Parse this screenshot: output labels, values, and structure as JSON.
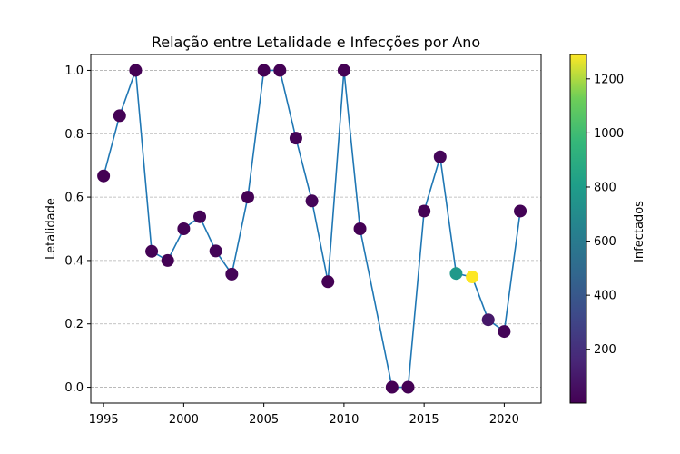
{
  "chart_data": {
    "type": "scatter",
    "title": "Relação entre Letalidade e Infecções por Ano",
    "xlabel": "",
    "ylabel": "Letalidade",
    "xlim": [
      1994.2,
      2022.3
    ],
    "ylim": [
      -0.05,
      1.05
    ],
    "x_ticks": [
      1995,
      2000,
      2005,
      2010,
      2015,
      2020
    ],
    "y_ticks": [
      0.0,
      0.2,
      0.4,
      0.6,
      0.8,
      1.0
    ],
    "y_tick_labels": [
      "0.0",
      "0.2",
      "0.4",
      "0.6",
      "0.8",
      "1.0"
    ],
    "grid": "y-dashed",
    "line_color": "#1f77b4",
    "colormap": "viridis",
    "colorbar": {
      "label": "Infectados",
      "range": [
        1,
        1290
      ],
      "ticks": [
        200,
        400,
        600,
        800,
        1000,
        1200
      ]
    },
    "points": [
      {
        "x": 1995,
        "y": 0.667,
        "infected": 3
      },
      {
        "x": 1996,
        "y": 0.857,
        "infected": 7
      },
      {
        "x": 1997,
        "y": 1.0,
        "infected": 1
      },
      {
        "x": 1998,
        "y": 0.429,
        "infected": 7
      },
      {
        "x": 1999,
        "y": 0.4,
        "infected": 5
      },
      {
        "x": 2000,
        "y": 0.5,
        "infected": 10
      },
      {
        "x": 2001,
        "y": 0.538,
        "infected": 13
      },
      {
        "x": 2002,
        "y": 0.43,
        "infected": 14
      },
      {
        "x": 2003,
        "y": 0.357,
        "infected": 14
      },
      {
        "x": 2004,
        "y": 0.6,
        "infected": 5
      },
      {
        "x": 2005,
        "y": 1.0,
        "infected": 2
      },
      {
        "x": 2006,
        "y": 1.0,
        "infected": 1
      },
      {
        "x": 2007,
        "y": 0.786,
        "infected": 14
      },
      {
        "x": 2008,
        "y": 0.588,
        "infected": 17
      },
      {
        "x": 2009,
        "y": 0.333,
        "infected": 3
      },
      {
        "x": 2010,
        "y": 1.0,
        "infected": 1
      },
      {
        "x": 2011,
        "y": 0.5,
        "infected": 2
      },
      {
        "x": 2013,
        "y": 0.0,
        "infected": 1
      },
      {
        "x": 2014,
        "y": 0.0,
        "infected": 1
      },
      {
        "x": 2015,
        "y": 0.556,
        "infected": 9
      },
      {
        "x": 2016,
        "y": 0.727,
        "infected": 22
      },
      {
        "x": 2017,
        "y": 0.359,
        "infected": 777
      },
      {
        "x": 2018,
        "y": 0.348,
        "infected": 1290
      },
      {
        "x": 2019,
        "y": 0.213,
        "infected": 94
      },
      {
        "x": 2020,
        "y": 0.176,
        "infected": 17
      },
      {
        "x": 2021,
        "y": 0.556,
        "infected": 9
      }
    ]
  }
}
